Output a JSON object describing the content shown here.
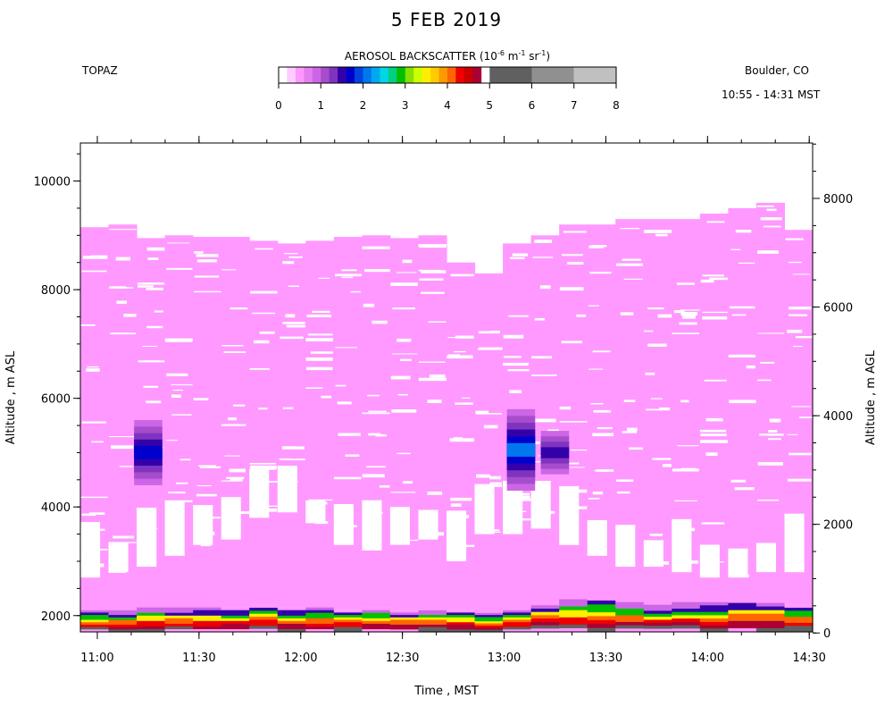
{
  "title": "5 FEB 2019",
  "instrument": "TOPAZ",
  "location": "Boulder, CO",
  "time_range": "10:55 - 14:31 MST",
  "colorbar": {
    "title_prefix": "AEROSOL BACKSCATTER (10",
    "title_mid": "  m",
    "title_mid2": "  sr",
    "title_suffix": ")",
    "exp_a": "-6",
    "exp_b": "-1",
    "exp_c": "-1",
    "ticks": [
      "0",
      "1",
      "2",
      "3",
      "4",
      "5",
      "6",
      "7",
      "8"
    ],
    "colors": [
      "#ffffff",
      "#ffccff",
      "#ff99ff",
      "#e57fef",
      "#cc66e6",
      "#a64ccc",
      "#8033bf",
      "#3300aa",
      "#0000cc",
      "#0044dd",
      "#0077ee",
      "#00a8f0",
      "#00d6e6",
      "#00d080",
      "#00c000",
      "#88e000",
      "#ccff00",
      "#ffee00",
      "#ffcc00",
      "#ff9900",
      "#ff6600",
      "#ee0000",
      "#cc0000",
      "#aa0033",
      "#606060",
      "#909090",
      "#c0c0c0"
    ]
  },
  "chart_data": {
    "type": "heatmap",
    "title": "5 FEB 2019",
    "xlabel": "Time , MST",
    "ylabel_left": "Altitude , m ASL",
    "ylabel_right": "Altitude , m AGL",
    "x_ticks": [
      "11:00",
      "11:30",
      "12:00",
      "12:30",
      "13:00",
      "13:30",
      "14:00",
      "14:30"
    ],
    "y_ticks_left": [
      "2000",
      "4000",
      "6000",
      "8000",
      "10000"
    ],
    "y_ticks_right": [
      "0",
      "2000",
      "4000",
      "6000",
      "8000"
    ],
    "xlim": [
      "10:55",
      "14:31"
    ],
    "ylim_asl": [
      1700,
      10700
    ],
    "colorbar_range": [
      0,
      8
    ],
    "value_units": "10^-6 m^-1 sr^-1",
    "signal_top_asl": [
      9150,
      9200,
      8950,
      9000,
      8970,
      8970,
      8900,
      8850,
      8900,
      8970,
      9000,
      8950,
      9000,
      8500,
      8300,
      8850,
      9000,
      9200,
      9200,
      9300,
      9300,
      9300,
      9400,
      9500,
      9600,
      9100
    ],
    "clear_bottom_asl": [
      2700,
      2800,
      2900,
      3100,
      3300,
      3400,
      3800,
      3900,
      3700,
      3300,
      3200,
      3300,
      3400,
      3000,
      3500,
      3500,
      3600,
      3300,
      3100,
      2900,
      2900,
      2800,
      2700,
      2700,
      2800,
      2800
    ],
    "boundary_layer_top_asl": [
      2100,
      2100,
      2150,
      2150,
      2150,
      2150,
      2200,
      2150,
      2150,
      2100,
      2150,
      2100,
      2100,
      2100,
      2050,
      2100,
      2250,
      2300,
      2350,
      2250,
      2200,
      2250,
      2250,
      2300,
      2300,
      2200
    ],
    "aerosol_layers": [
      {
        "time": "11:15",
        "bottom": 4400,
        "top": 5600,
        "max_value": 1.6
      },
      {
        "time": "13:05",
        "bottom": 4300,
        "top": 5800,
        "max_value": 2.0
      },
      {
        "time": "13:15",
        "bottom": 4600,
        "top": 5400,
        "max_value": 1.2
      }
    ]
  }
}
